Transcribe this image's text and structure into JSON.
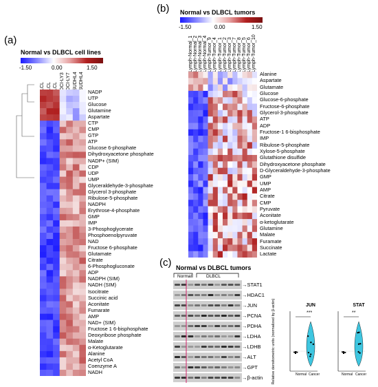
{
  "panel_a": {
    "label": "(a)",
    "title": "Normal vs DLBCL cell lines",
    "scale": {
      "min": "-1.50",
      "mid": "0.00",
      "max": "1.50"
    },
    "columns": [
      "LCL",
      "LCL",
      "LCL",
      "OCI-LY3",
      "OCI-LY7",
      "SUDHL4",
      "SUDHL4"
    ],
    "rows": [
      "NADP",
      "UTP",
      "Glucose",
      "Glutamine",
      "Aspartate",
      "CTP",
      "CMP",
      "GTP",
      "ATP",
      "Glucose 6-phosphate",
      "Dihydroxyacetone phosphate",
      "NADP+ (SIM)",
      "CDP",
      "UDP",
      "UMP",
      "Glyceraldehyde-3-phosphate",
      "Glycerol 3-phosphate",
      "Ribulose-5-phosphate",
      "NADPH",
      "Erythrose-4-phosphate",
      "GMP",
      "IMP",
      "3-Phosphoglycerate",
      "Phosphoenolpyruvate",
      "NAD",
      "Fructose 6-phosphate",
      "Glutamate",
      "Citrate",
      "6-Phosphogluconate",
      "ADP",
      "NADPH (SIM)",
      "NADH (SIM)",
      "Isocitrate",
      "Succinic acid",
      "Aconitate",
      "Fumarate",
      "AMP",
      "NAD+ (SIM)",
      "Fructose 1 6-bisphosphate",
      "Deoxyribose phosphate",
      "Malate",
      "α-Ketoglutarate",
      "Alanine",
      "Acetyl CoA",
      "Coenzyme A",
      "NADH"
    ]
  },
  "panel_b": {
    "label": "(b)",
    "title": "Normal vs DLBCL tumors",
    "scale": {
      "min": "-1.50",
      "mid": "0.00",
      "max": "1.50"
    },
    "columns": [
      "Lymph-Normal_1",
      "Lymph-Normal_2",
      "Lymph-Normal_3",
      "Lymph-Normal_4",
      "Lymph-Tumor_9",
      "Lymph-Tumor_4",
      "Lymph-Tumor_1",
      "Lymph-Tumor_2",
      "Lymph-Tumor_3",
      "Lymph-Tumor_7",
      "Lymph-Tumor_8",
      "Lymph-Tumor_5",
      "Lymph-Tumor_6",
      "Lymph-Tumor_10"
    ],
    "rows": [
      "Alanine",
      "Aspartate",
      "Glutamate",
      "Glucose",
      "Glucose-6-phosphate",
      "Fructose-6-phosphate",
      "Glycerol-3-phosphate",
      "ATP",
      "ADP",
      "Fructose-1 6-bisphosphate",
      "IMP",
      "Ribulose-5-phosphate",
      "Xylose-5-phosphate",
      "Glutathione disulfide",
      "Dihydroxyacetone phosphate",
      "D-Glyceraldehyde-3-phosphate",
      "GMP",
      "UMP",
      "AMP",
      "Citrate",
      "CMP",
      "Pyruvate",
      "Aconitate",
      "α-ketoglutarate",
      "Glutamine",
      "Malate",
      "Furamate",
      "Succinate",
      "Lactate"
    ]
  },
  "panel_c": {
    "label": "(c)",
    "title": "Normal vs DLBCL tumors",
    "groups": {
      "normal": "Normal",
      "dlbcl": "DLBCL"
    },
    "bands": [
      "STAT1",
      "HDAC1",
      "JUN",
      "PCNA",
      "PDHA",
      "LDHA",
      "LDHB",
      "ALT",
      "GPT",
      "β-actin"
    ],
    "y_axis": "Relative densitometric units (normalized by β-actin)",
    "plots": [
      {
        "title": "JUN",
        "significance": "***",
        "x": [
          "Normal",
          "Cancer"
        ]
      },
      {
        "title": "STAT",
        "significance": "**",
        "x": [
          "Normal",
          "Cancer"
        ]
      }
    ]
  },
  "colors": {
    "low": "#1a1aff",
    "mid": "#ffffff",
    "high": "#b22020",
    "violin": "#3ec6e0"
  }
}
